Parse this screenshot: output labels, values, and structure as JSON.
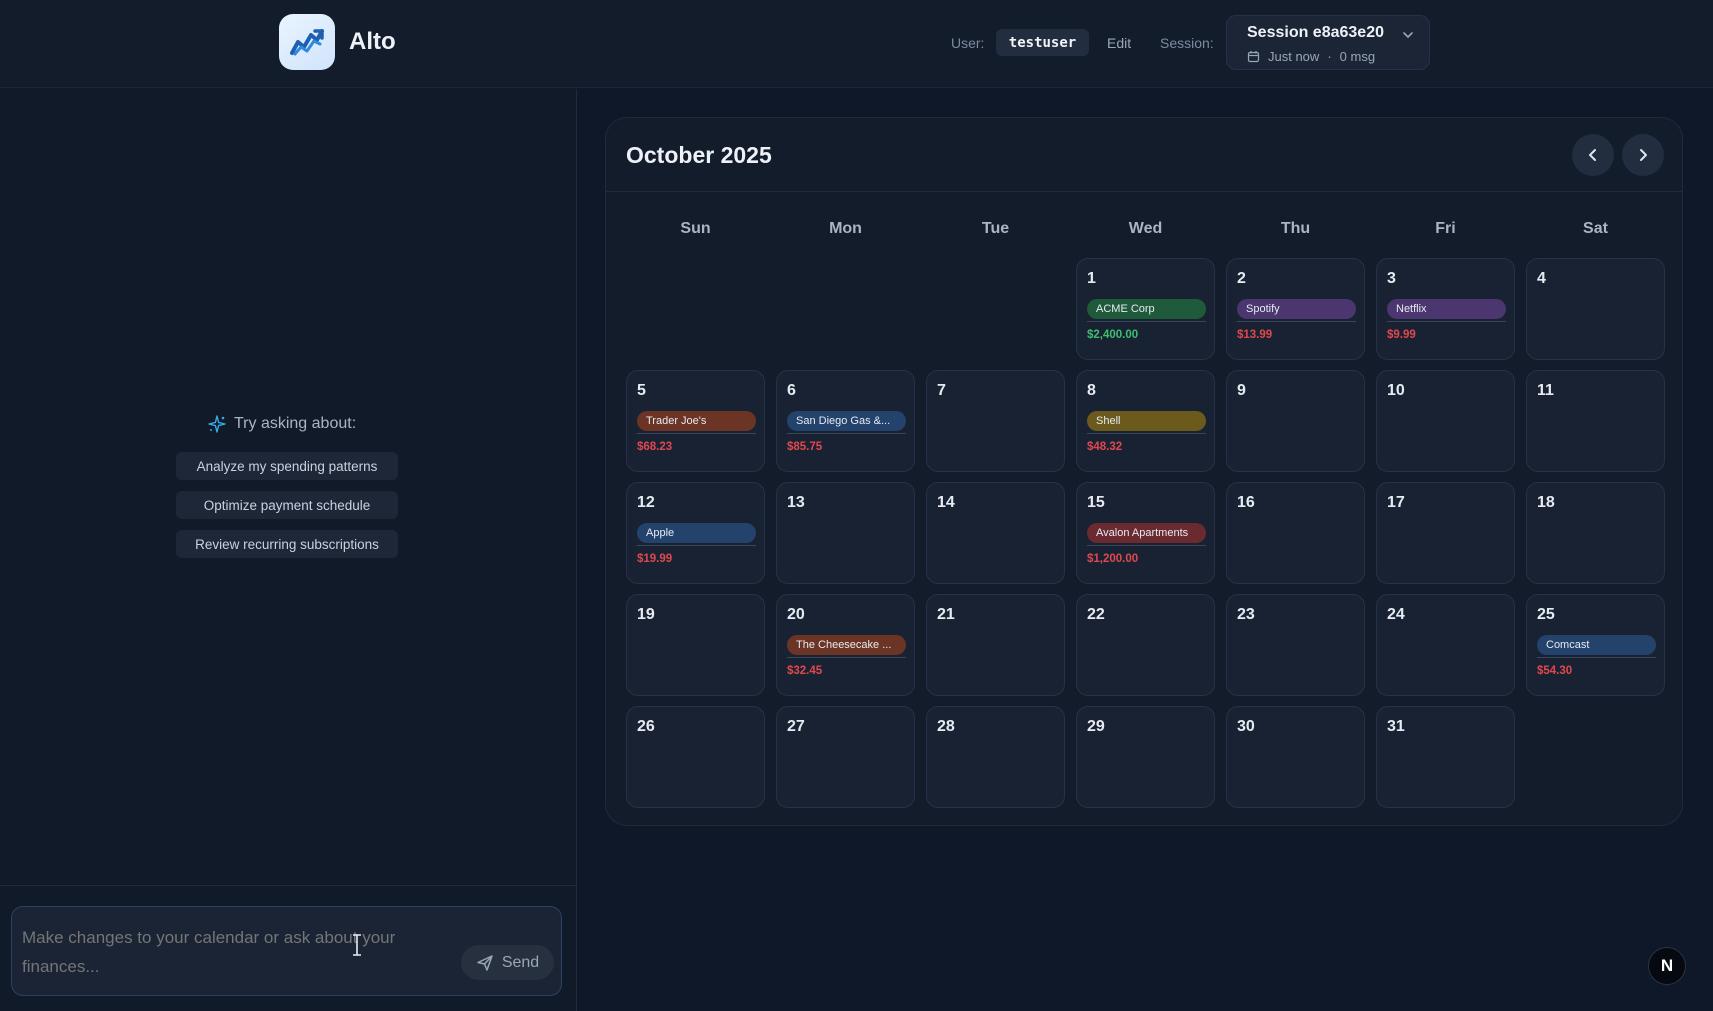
{
  "header": {
    "app_name": "Alto",
    "logo_icon": "chart-trend-icon",
    "user_label": "User:",
    "username": "testuser",
    "edit_label": "Edit",
    "session_label": "Session:",
    "session_name": "Session e8a63e20",
    "session_time": "Just now",
    "session_separator": "·",
    "session_msgs": "0 msg"
  },
  "sidebar": {
    "suggest_heading": "Try asking about:",
    "suggestions": [
      "Analyze my spending patterns",
      "Optimize payment schedule",
      "Review recurring subscriptions"
    ],
    "input_placeholder": "Make changes to your calendar or ask about your finances...",
    "send_label": "Send"
  },
  "calendar": {
    "month_title": "October 2025",
    "weekdays": [
      "Sun",
      "Mon",
      "Tue",
      "Wed",
      "Thu",
      "Fri",
      "Sat"
    ],
    "first_weekday": 3,
    "days_in_month": 31,
    "events": [
      {
        "day": 1,
        "name": "ACME Corp",
        "amount": "$2,400.00",
        "kind": "income"
      },
      {
        "day": 2,
        "name": "Spotify",
        "amount": "$13.99",
        "kind": "expense"
      },
      {
        "day": 3,
        "name": "Netflix",
        "amount": "$9.99",
        "kind": "expense"
      },
      {
        "day": 5,
        "name": "Trader Joe's",
        "amount": "$68.23",
        "kind": "expense"
      },
      {
        "day": 6,
        "name": "San Diego Gas &...",
        "amount": "$85.75",
        "kind": "expense"
      },
      {
        "day": 8,
        "name": "Shell",
        "amount": "$48.32",
        "kind": "expense"
      },
      {
        "day": 12,
        "name": "Apple",
        "amount": "$19.99",
        "kind": "expense"
      },
      {
        "day": 15,
        "name": "Avalon Apartments",
        "amount": "$1,200.00",
        "kind": "expense"
      },
      {
        "day": 20,
        "name": "The Cheesecake ...",
        "amount": "$32.45",
        "kind": "expense"
      },
      {
        "day": 25,
        "name": "Comcast",
        "amount": "$54.30",
        "kind": "expense"
      }
    ]
  },
  "colors": {
    "income_amount": "#3fbf6e",
    "expense_amount": "#e0484d",
    "pill_acme": "#1f5a3a",
    "pill_spotify": "#4b3670",
    "pill_netflix": "#4b3670",
    "pill_traderjoes": "#6b3424",
    "pill_sdge": "#23426c",
    "pill_shell": "#6b5a1c",
    "pill_apple": "#23426c",
    "pill_avalon": "#6b2a30",
    "pill_cheesecake": "#6b3424",
    "pill_comcast": "#23426c"
  },
  "floating_badge": "N"
}
